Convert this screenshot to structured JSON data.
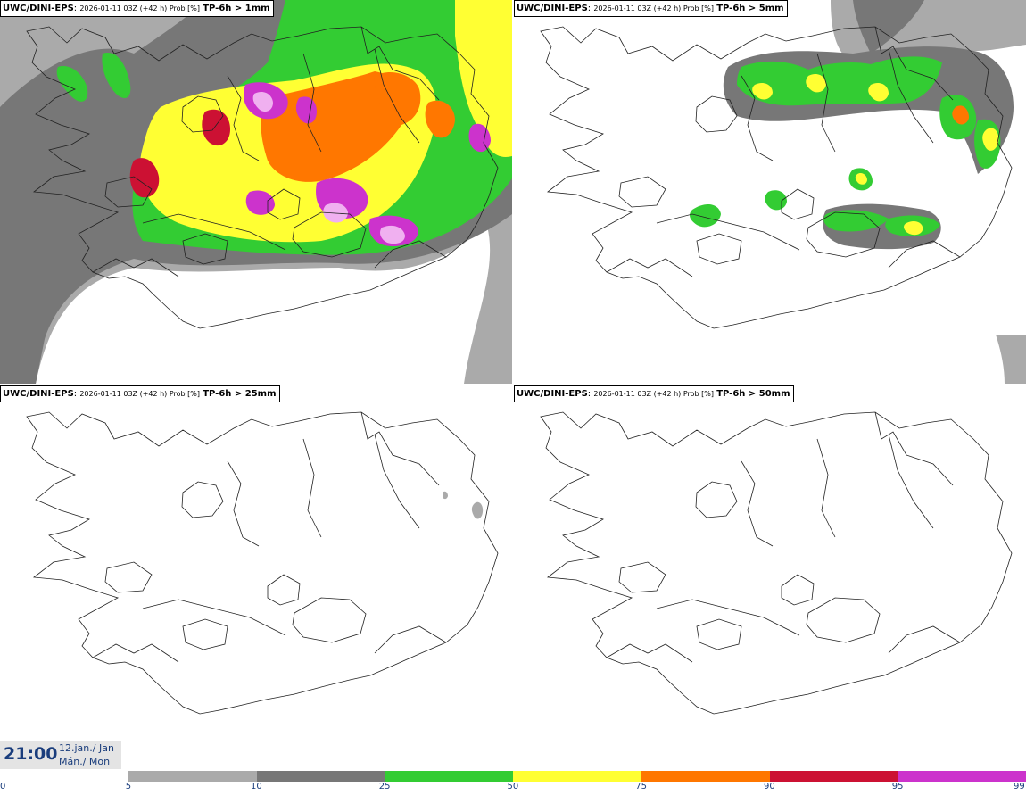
{
  "panels": [
    {
      "model": "UWC/DINI-EPS",
      "run_info": "2026-01-11 03Z (+42 h) Prob [%]",
      "field": "TP-6h > 1mm"
    },
    {
      "model": "UWC/DINI-EPS",
      "run_info": "2026-01-11 03Z (+42 h) Prob [%]",
      "field": "TP-6h > 5mm"
    },
    {
      "model": "UWC/DINI-EPS",
      "run_info": "2026-01-11 03Z (+42 h) Prob [%]",
      "field": "TP-6h > 25mm"
    },
    {
      "model": "UWC/DINI-EPS",
      "run_info": "2026-01-11 03Z (+42 h) Prob [%]",
      "field": "TP-6h > 50mm"
    }
  ],
  "valid_time": {
    "time": "21:00",
    "date_line1": "12.jan./ Jan",
    "date_line2": "Mán./ Mon"
  },
  "colorscale": {
    "ticks": [
      "0",
      "5",
      "10",
      "25",
      "50",
      "75",
      "90",
      "95",
      "99"
    ],
    "colors": [
      "#ffffff",
      "#aaaaaa",
      "#777777",
      "#33cc33",
      "#ffff33",
      "#ff7700",
      "#cc1133",
      "#cc33cc",
      "#f0b0f0"
    ]
  }
}
